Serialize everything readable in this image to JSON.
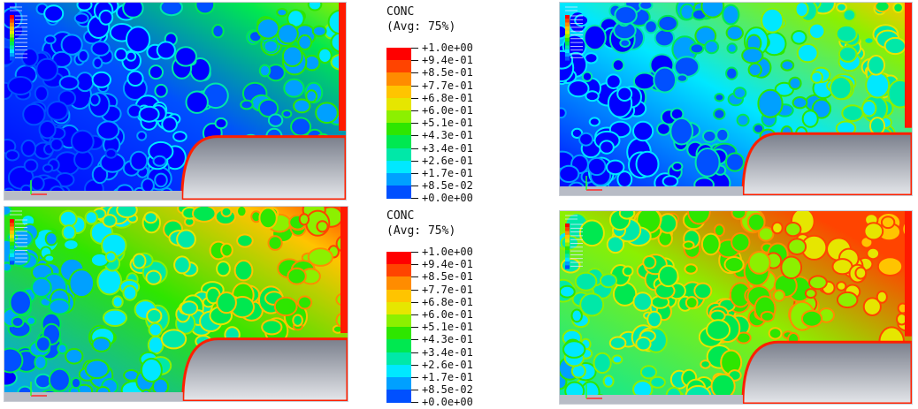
{
  "legend": {
    "variable": "CONC",
    "averaging": "(Avg: 75%)",
    "levels": [
      {
        "label": "+1.0e+00",
        "color": "#ff0000"
      },
      {
        "label": "+9.4e-01",
        "color": "#ff4400"
      },
      {
        "label": "+8.5e-01",
        "color": "#ff8c00"
      },
      {
        "label": "+7.7e-01",
        "color": "#ffc400"
      },
      {
        "label": "+6.8e-01",
        "color": "#e6e600"
      },
      {
        "label": "+6.0e-01",
        "color": "#8cf000"
      },
      {
        "label": "+5.1e-01",
        "color": "#2ee600"
      },
      {
        "label": "+4.3e-01",
        "color": "#00e850"
      },
      {
        "label": "+3.4e-01",
        "color": "#00e8a8"
      },
      {
        "label": "+2.6e-01",
        "color": "#00e8ff"
      },
      {
        "label": "+1.7e-01",
        "color": "#00a0ff"
      },
      {
        "label": "+8.5e-02",
        "color": "#0050ff"
      },
      {
        "label": "+0.0e+00",
        "color": "#0000ff"
      }
    ]
  },
  "panels": [
    {
      "name": "panel-top-left",
      "mean_level": 0.15,
      "cell_fill": "#1e3fd4",
      "border": "#2fd0e8",
      "bg": "#1535d0"
    },
    {
      "name": "panel-top-right",
      "mean_level": 0.3,
      "cell_fill": "#1c7ee0",
      "border": "#45e0c8",
      "bg": "#1a68e0"
    },
    {
      "name": "panel-bottom-left",
      "mean_level": 0.5,
      "cell_fill": "#2aa0e0",
      "border": "#9ee84a",
      "bg": "#1ab8f0"
    },
    {
      "name": "panel-bottom-right",
      "mean_level": 0.65,
      "cell_fill": "#3fb0e8",
      "border": "#e8b040",
      "bg": "#26c8e8"
    }
  ]
}
